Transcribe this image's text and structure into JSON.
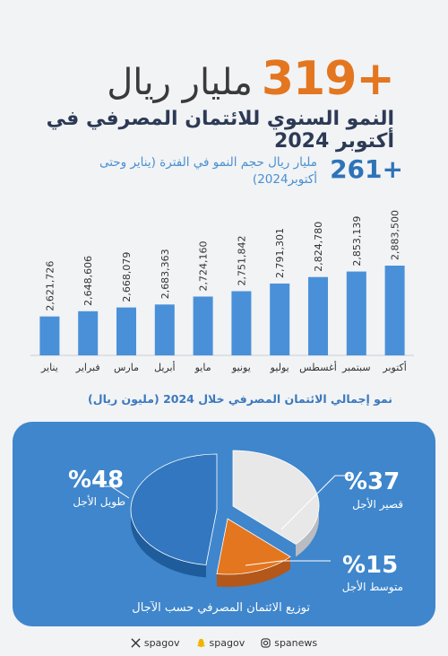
{
  "headline": {
    "number": "319+",
    "unit": "مليار ريال"
  },
  "subheadline": "النمو السنوي للائتمان المصرفي في أكتوبر 2024",
  "growth": {
    "number": "261+",
    "text": "مليار ريال حجم النمو في الفترة (يناير وحتى أكتوبر2024)"
  },
  "chart_title": "نمو إجمالي الائتمان المصرفي خلال 2024 (مليون ريال)",
  "pie_title": "توزيع الائتمان المصرفي حسب الآجال",
  "pie_labels": {
    "long": {
      "pct": "%48",
      "label": "طويل الأجل"
    },
    "short": {
      "pct": "%37",
      "label": "قصير الأجل"
    },
    "medium": {
      "pct": "%15",
      "label": "متوسط الأجل"
    }
  },
  "footer": {
    "instagram": "spanews",
    "snapchat": "spagov",
    "x": "spagov"
  },
  "colors": {
    "bar": "#4a90d9",
    "accent": "#e3761f",
    "pie_long": "#3277bf",
    "pie_short": "#e8e8e8",
    "pie_medium": "#e3761f"
  },
  "icons": [
    "instagram-icon",
    "snapchat-icon",
    "x-icon"
  ],
  "chart_data": [
    {
      "type": "bar",
      "categories": [
        "أكتوبر",
        "سبتمبر",
        "أغسطس",
        "يوليو",
        "يونيو",
        "مايو",
        "أبريل",
        "مارس",
        "فبراير",
        "يناير"
      ],
      "values": [
        2883500,
        2853139,
        2824780,
        2791301,
        2751842,
        2724160,
        2683363,
        2668079,
        2648606,
        2621726
      ],
      "value_labels": [
        "2,883,500",
        "2,853,139",
        "2,824,780",
        "2,791,301",
        "2,751,842",
        "2,724,160",
        "2,683,363",
        "2,668,079",
        "2,648,606",
        "2,621,726"
      ],
      "title": "نمو إجمالي الائتمان المصرفي خلال 2024 (مليون ريال)",
      "axis_order": "right-to-left"
    },
    {
      "type": "pie",
      "labels": [
        "طويل الأجل",
        "قصير الأجل",
        "متوسط الأجل"
      ],
      "values": [
        48,
        37,
        15
      ],
      "title": "توزيع الائتمان المصرفي حسب الآجال"
    }
  ]
}
